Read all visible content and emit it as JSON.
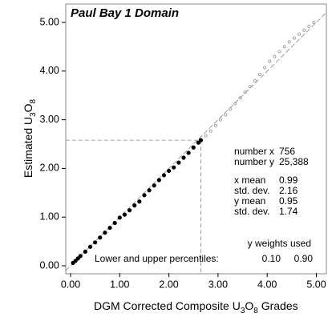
{
  "chart_data": {
    "type": "scatter",
    "title": "Paul Bay 1 Domain",
    "x_label": [
      {
        "text": "DGM Corrected Composite U"
      },
      {
        "text": "3",
        "sub": true
      },
      {
        "text": "O"
      },
      {
        "text": "8",
        "sub": true
      },
      {
        "text": " Grades"
      }
    ],
    "y_label": [
      {
        "text": "Estimated U"
      },
      {
        "text": "3",
        "sub": true
      },
      {
        "text": "O"
      },
      {
        "text": "8",
        "sub": true
      }
    ],
    "xlim": [
      -0.1,
      5.2
    ],
    "ylim": [
      -0.15,
      5.38
    ],
    "xticks": [
      {
        "value": 0,
        "label": "0.00"
      },
      {
        "value": 1,
        "label": "1.00"
      },
      {
        "value": 2,
        "label": "2.00"
      },
      {
        "value": 3,
        "label": "3.00"
      },
      {
        "value": 4,
        "label": "4.00"
      },
      {
        "value": 5,
        "label": "5.00"
      }
    ],
    "yticks": [
      {
        "value": 0,
        "label": "0.00"
      },
      {
        "value": 1,
        "label": "1.00"
      },
      {
        "value": 2,
        "label": "2.00"
      },
      {
        "value": 3,
        "label": "3.00"
      },
      {
        "value": 4,
        "label": "4.00"
      },
      {
        "value": 5,
        "label": "5.00"
      }
    ],
    "series": [
      {
        "color": "#000000",
        "filled": true,
        "x": [
          0.05,
          0.1,
          0.15,
          0.2,
          0.3,
          0.4,
          0.5,
          0.6,
          0.7,
          0.8,
          0.9,
          1.0,
          1.1,
          1.2,
          1.3,
          1.4,
          1.5,
          1.6,
          1.7,
          1.8,
          1.9,
          2.0,
          2.1,
          2.2,
          2.3,
          2.4,
          2.5,
          2.6,
          2.65
        ],
        "values": [
          0.06,
          0.1,
          0.15,
          0.2,
          0.29,
          0.39,
          0.48,
          0.58,
          0.68,
          0.78,
          0.88,
          0.99,
          1.05,
          1.14,
          1.24,
          1.32,
          1.45,
          1.55,
          1.65,
          1.76,
          1.86,
          1.95,
          2.02,
          2.12,
          2.22,
          2.32,
          2.43,
          2.53,
          2.58
        ]
      },
      {
        "color": "#999999",
        "filled": false,
        "x": [
          2.75,
          2.85,
          2.95,
          3.05,
          3.15,
          3.25,
          3.35,
          3.45,
          3.55,
          3.65,
          3.75,
          3.85,
          3.95,
          4.05,
          4.15,
          4.25,
          4.35,
          4.45,
          4.55,
          4.65,
          4.75,
          4.85,
          4.95
        ],
        "values": [
          2.67,
          2.77,
          2.88,
          3.0,
          3.1,
          3.22,
          3.33,
          3.45,
          3.57,
          3.68,
          3.8,
          3.93,
          4.07,
          4.2,
          4.3,
          4.4,
          4.5,
          4.6,
          4.68,
          4.76,
          4.84,
          4.92,
          5.0
        ]
      }
    ],
    "percentile_marker": {
      "x": 2.65,
      "y": 2.58
    },
    "stats": [
      {
        "label": "number x",
        "value": "756"
      },
      {
        "label": "number y",
        "value": "25,388"
      },
      {
        "label": "x mean",
        "value": "0.99"
      },
      {
        "label": "std. dev.",
        "value": "2.16"
      },
      {
        "label": "y mean",
        "value": "0.95"
      },
      {
        "label": "std. dev.",
        "value": "1.74"
      }
    ],
    "weights_note": "y weights used",
    "percentiles_label": "Lower and upper percentiles:",
    "percentiles": [
      "0.10",
      "0.90"
    ]
  }
}
